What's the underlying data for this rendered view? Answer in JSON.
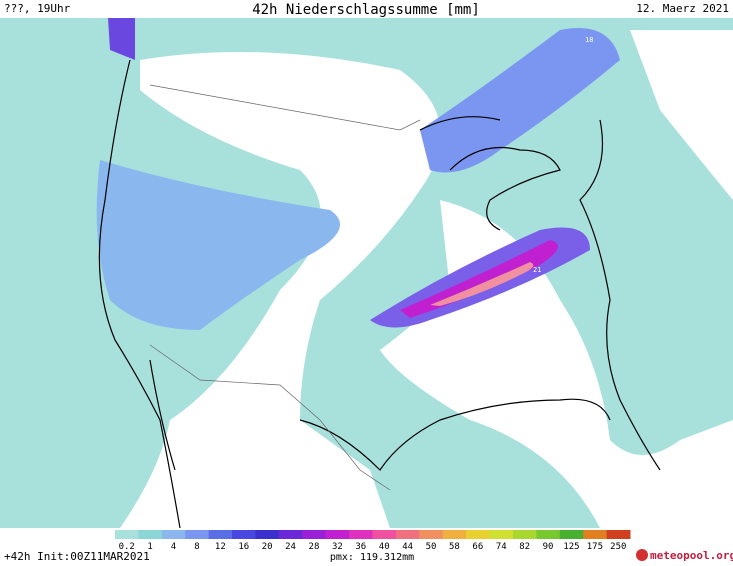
{
  "header": {
    "left": "???, 19Uhr",
    "title": "42h Niederschlagssumme [mm]",
    "date": "12. Maerz 2021"
  },
  "map": {
    "labels": [
      "18",
      "21"
    ]
  },
  "legend": {
    "items": [
      {
        "label": "0.2",
        "color": "#a8e0dc"
      },
      {
        "label": "1",
        "color": "#8cd6d8"
      },
      {
        "label": "4",
        "color": "#8ab8ee"
      },
      {
        "label": "8",
        "color": "#7a96f0"
      },
      {
        "label": "12",
        "color": "#5a6ee8"
      },
      {
        "label": "16",
        "color": "#4848e0"
      },
      {
        "label": "20",
        "color": "#3a30d0"
      },
      {
        "label": "24",
        "color": "#6a28d8"
      },
      {
        "label": "28",
        "color": "#9a20d8"
      },
      {
        "label": "32",
        "color": "#c020d0"
      },
      {
        "label": "36",
        "color": "#e030c0"
      },
      {
        "label": "40",
        "color": "#f050a0"
      },
      {
        "label": "44",
        "color": "#f07080"
      },
      {
        "label": "50",
        "color": "#f09060"
      },
      {
        "label": "58",
        "color": "#f0b040"
      },
      {
        "label": "66",
        "color": "#e8d030"
      },
      {
        "label": "74",
        "color": "#d0e030"
      },
      {
        "label": "82",
        "color": "#a8d830"
      },
      {
        "label": "90",
        "color": "#78c830"
      },
      {
        "label": "125",
        "color": "#48b030"
      },
      {
        "label": "175",
        "color": "#e08020"
      },
      {
        "label": "250",
        "color": "#d04020"
      }
    ]
  },
  "footer": {
    "run": "+42h Init:00Z11MAR2021",
    "pmax": "pmx: 119.312mm",
    "brand": "meteopool.org"
  }
}
